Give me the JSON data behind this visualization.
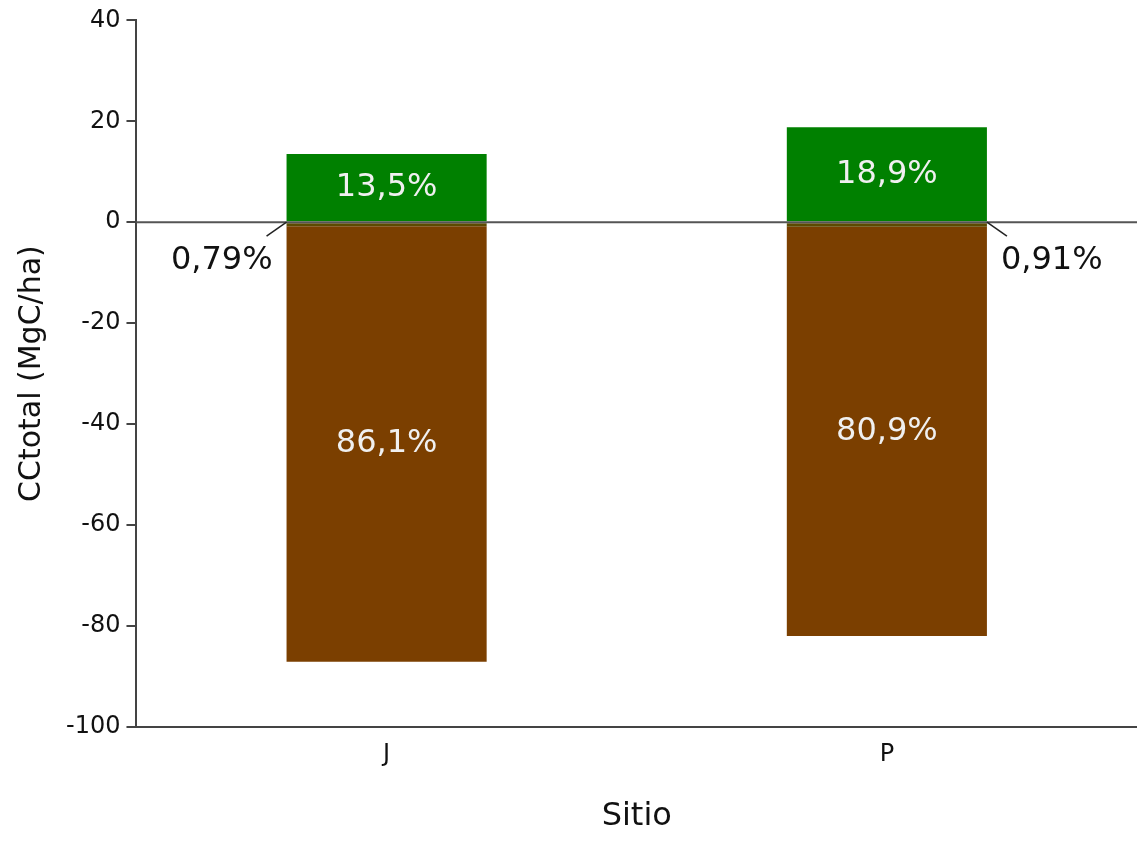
{
  "chart_data": {
    "type": "bar",
    "stacked": true,
    "xlabel": "Sitio",
    "ylabel": "CCtotal (MgC/ha)",
    "categories": [
      "J",
      "P"
    ],
    "series": [
      {
        "color": "#008000",
        "values": [
          13.5,
          18.8
        ]
      },
      {
        "color": "#5c4a00",
        "values": [
          -0.8,
          -0.9
        ]
      },
      {
        "color": "#7b3f00",
        "values": [
          -86.3,
          -81.1
        ]
      }
    ],
    "annotations": [
      "13,5%",
      "18,9%",
      "0,79%",
      "0,91%",
      "86,1%",
      "80,9%"
    ],
    "ylim": [
      -100,
      40
    ],
    "yticks": [
      -100,
      -80,
      -60,
      -40,
      -20,
      0,
      20,
      40
    ],
    "ref_lines": [
      {
        "axis": "y",
        "value": 0,
        "color": "#555555"
      }
    ],
    "grid": false,
    "legend": false
  }
}
